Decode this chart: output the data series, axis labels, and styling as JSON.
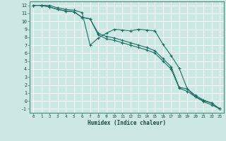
{
  "xlabel": "Humidex (Indice chaleur)",
  "background_color": "#cce8e4",
  "grid_color": "#b0d8d0",
  "line_color": "#1a6e60",
  "xlim": [
    -0.5,
    23.5
  ],
  "ylim": [
    -1.5,
    12.5
  ],
  "xticks": [
    0,
    1,
    2,
    3,
    4,
    5,
    6,
    7,
    8,
    9,
    10,
    11,
    12,
    13,
    14,
    15,
    16,
    17,
    18,
    19,
    20,
    21,
    22,
    23
  ],
  "yticks": [
    -1,
    0,
    1,
    2,
    3,
    4,
    5,
    6,
    7,
    8,
    9,
    10,
    11,
    12
  ],
  "lines": [
    [
      12,
      12,
      12,
      11.7,
      11.5,
      11.4,
      11.1,
      7.0,
      7.9,
      8.5,
      9.0,
      8.9,
      8.8,
      9.0,
      8.9,
      8.8,
      7.1,
      5.7,
      4.1,
      1.5,
      0.5,
      0.05,
      -0.3,
      -1.0
    ],
    [
      12,
      12,
      11.8,
      11.5,
      11.3,
      11.2,
      10.5,
      10.3,
      8.5,
      8.1,
      7.9,
      7.6,
      7.3,
      7.0,
      6.7,
      6.3,
      5.3,
      4.3,
      1.7,
      1.5,
      0.7,
      0.1,
      -0.25,
      -1.0
    ],
    [
      12,
      12,
      11.8,
      11.5,
      11.3,
      11.2,
      10.5,
      10.3,
      8.3,
      7.8,
      7.6,
      7.3,
      7.0,
      6.7,
      6.4,
      6.0,
      5.0,
      4.0,
      1.6,
      1.2,
      0.5,
      -0.1,
      -0.5,
      -1.0
    ]
  ]
}
